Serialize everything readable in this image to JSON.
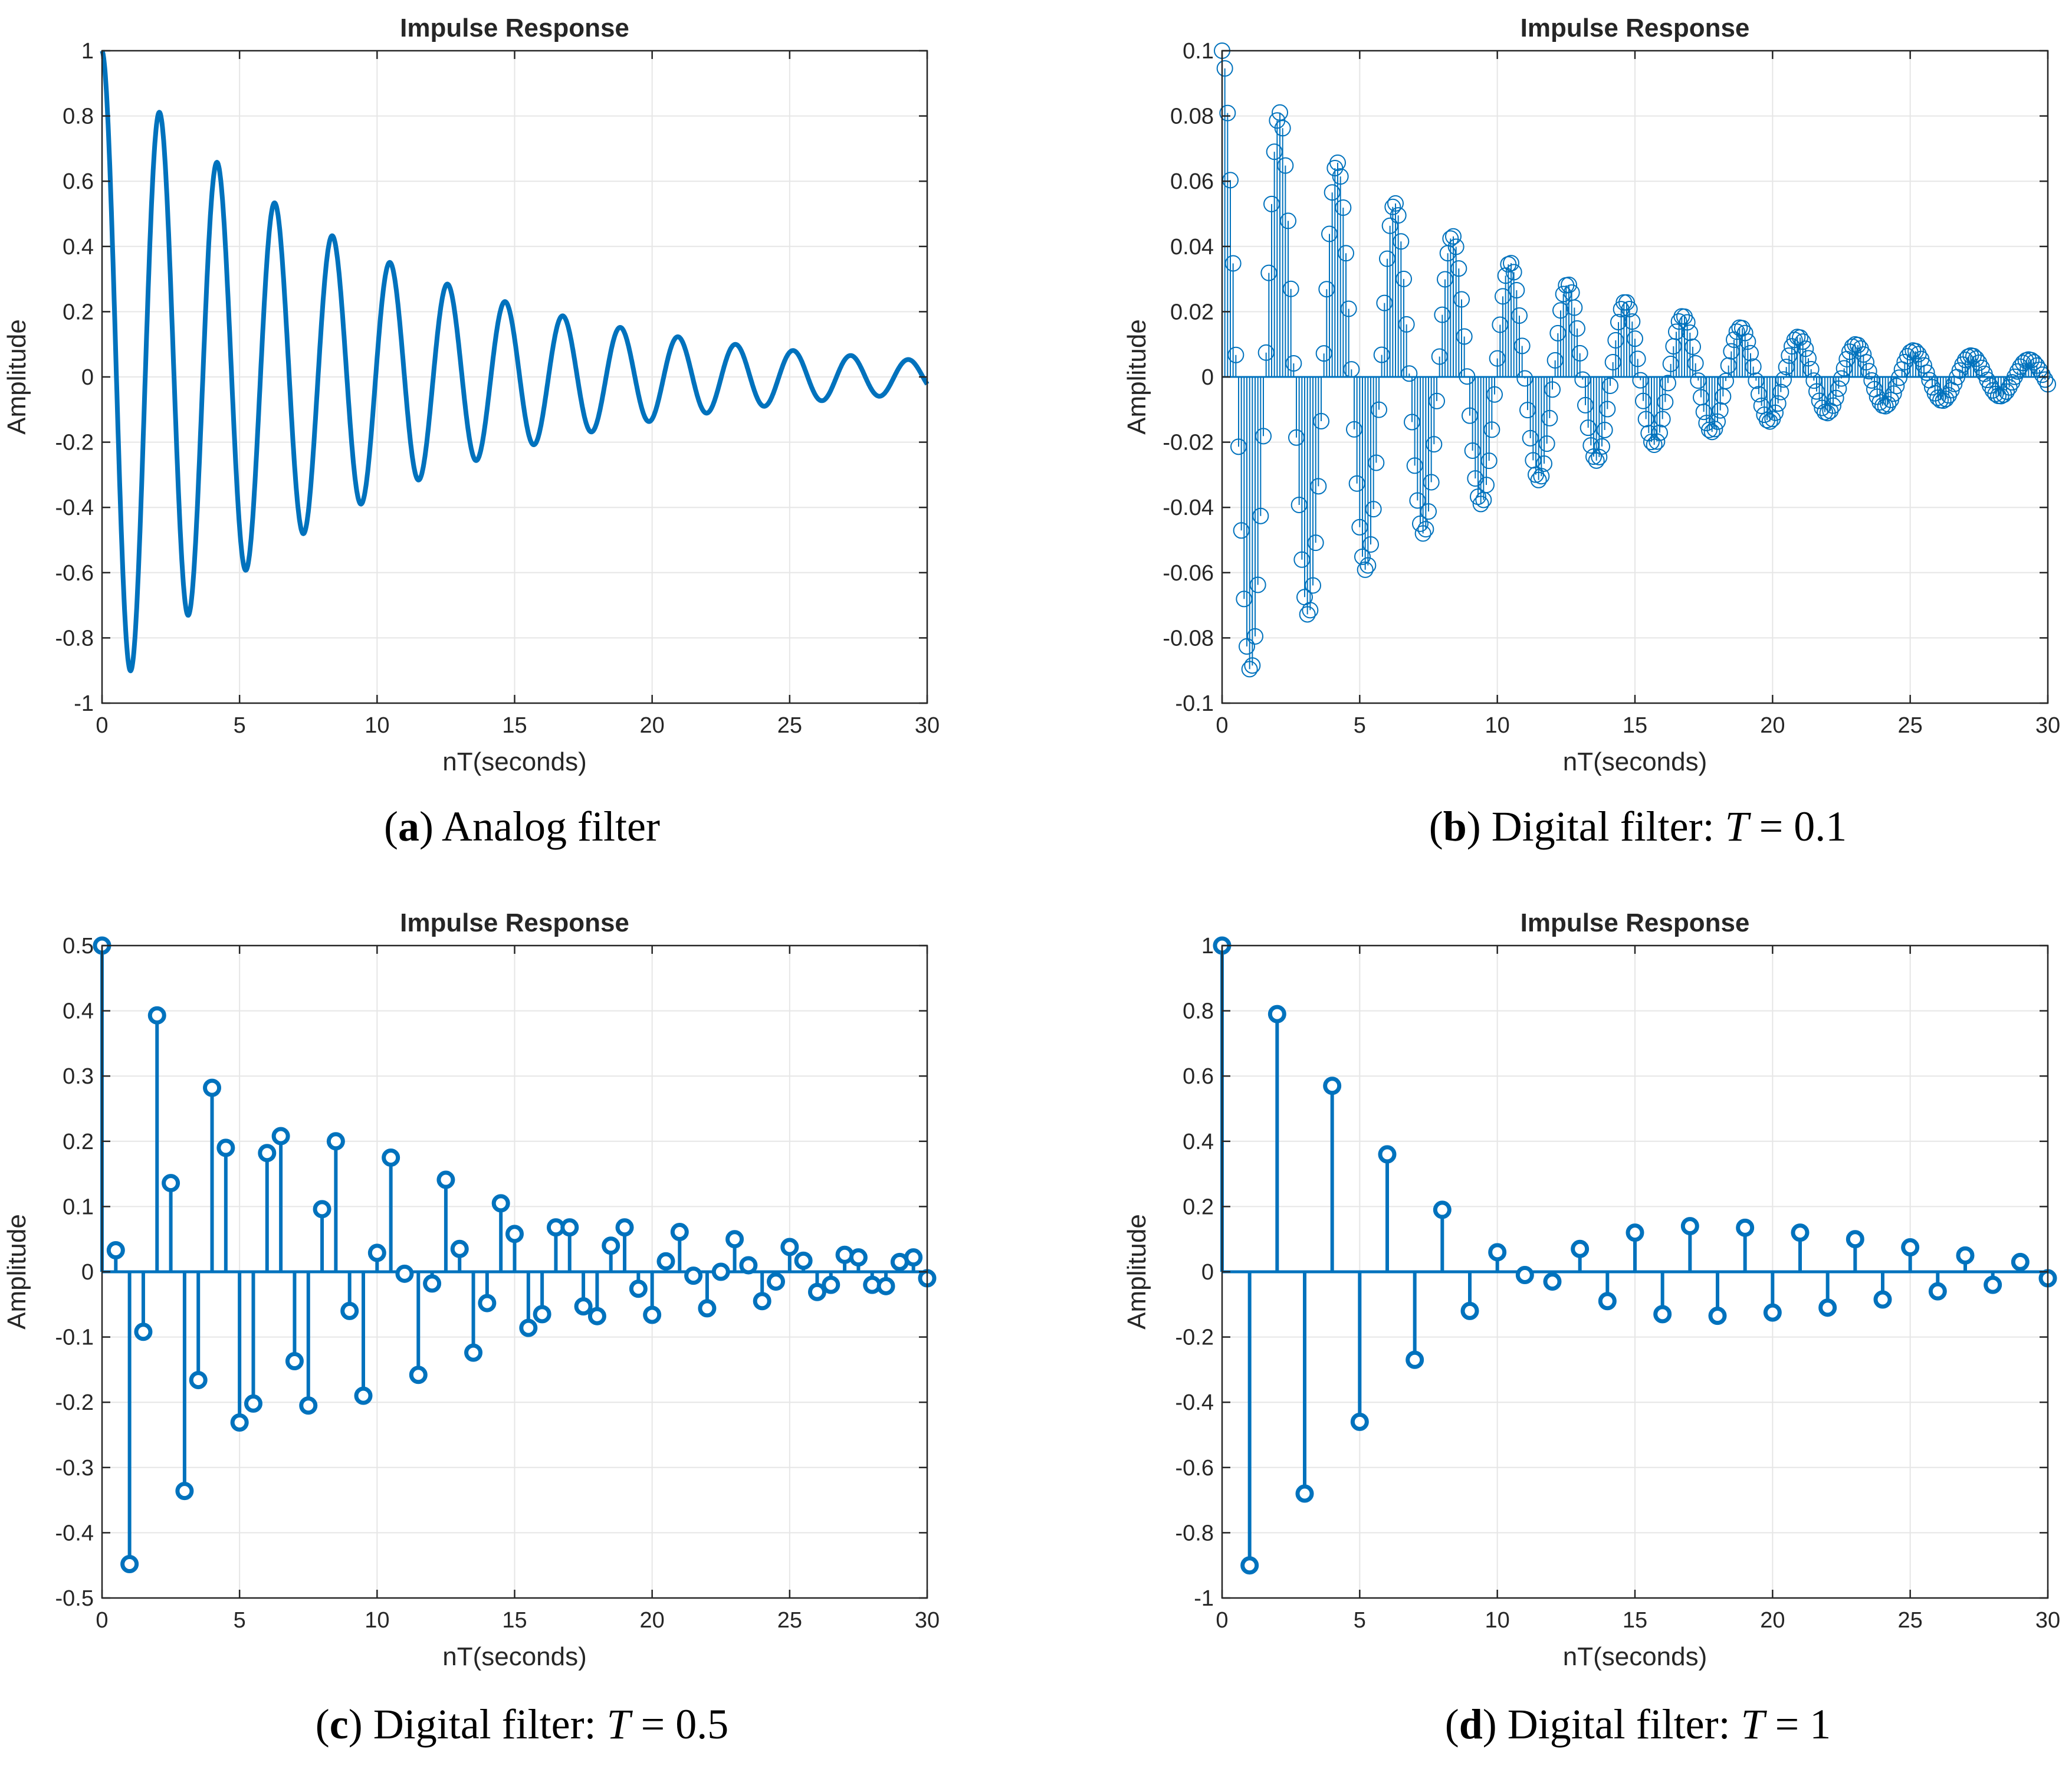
{
  "panels": [
    {
      "id": "a",
      "caption": {
        "letter": "a",
        "text": "Analog filter",
        "var": "",
        "value": ""
      },
      "chart_data": {
        "type": "line",
        "title": "Impulse Response",
        "xlabel": "nT(seconds)",
        "ylabel": "Amplitude",
        "xlim": [
          0,
          30
        ],
        "ylim": [
          -1,
          1
        ],
        "xticks": [
          0,
          5,
          10,
          15,
          20,
          25,
          30
        ],
        "yticks": [
          -1,
          -0.8,
          -0.6,
          -0.4,
          -0.2,
          0,
          0.2,
          0.4,
          0.6,
          0.8,
          1
        ],
        "ytick_labels": [
          "-1",
          "-0.8",
          "-0.6",
          "-0.4",
          "-0.2",
          "0",
          "0.2",
          "0.4",
          "0.6",
          "0.8",
          "1"
        ],
        "grid": true,
        "color": "#0072BD",
        "model": {
          "kind": "damped_cosine",
          "amplitude": 1,
          "decay": 0.1,
          "omega": 3,
          "x_start": 0,
          "x_end": 30,
          "step": 0.02
        }
      }
    },
    {
      "id": "b",
      "caption": {
        "letter": "b",
        "text": "Digital filter: ",
        "var": "T",
        "value": " = 0.1"
      },
      "chart_data": {
        "type": "stem",
        "title": "Impulse Response",
        "xlabel": "nT(seconds)",
        "ylabel": "Amplitude",
        "xlim": [
          0,
          30
        ],
        "ylim": [
          -0.1,
          0.1
        ],
        "xticks": [
          0,
          5,
          10,
          15,
          20,
          25,
          30
        ],
        "yticks": [
          -0.1,
          -0.08,
          -0.06,
          -0.04,
          -0.02,
          0,
          0.02,
          0.04,
          0.06,
          0.08,
          0.1
        ],
        "ytick_labels": [
          "-0.1",
          "-0.08",
          "-0.06",
          "-0.04",
          "-0.02",
          "0",
          "0.02",
          "0.04",
          "0.06",
          "0.08",
          "0.1"
        ],
        "grid": true,
        "color": "#0072BD",
        "marker": "open-circle",
        "model": {
          "kind": "damped_cosine",
          "amplitude": 0.1,
          "decay": 0.1,
          "omega": 3,
          "x_start": 0,
          "x_end": 30,
          "step": 0.1
        }
      }
    },
    {
      "id": "c",
      "caption": {
        "letter": "c",
        "text": "Digital filter: ",
        "var": "T",
        "value": " = 0.5"
      },
      "chart_data": {
        "type": "stem",
        "title": "Impulse Response",
        "xlabel": "nT(seconds)",
        "ylabel": "Amplitude",
        "xlim": [
          0,
          30
        ],
        "ylim": [
          -0.5,
          0.5
        ],
        "xticks": [
          0,
          5,
          10,
          15,
          20,
          25,
          30
        ],
        "yticks": [
          -0.5,
          -0.4,
          -0.3,
          -0.2,
          -0.1,
          0,
          0.1,
          0.2,
          0.3,
          0.4,
          0.5
        ],
        "ytick_labels": [
          "-0.5",
          "-0.4",
          "-0.3",
          "-0.2",
          "-0.1",
          "0",
          "0.1",
          "0.2",
          "0.3",
          "0.4",
          "0.5"
        ],
        "grid": true,
        "color": "#0072BD",
        "marker": "thick-circle",
        "x": [
          0,
          0.5,
          1,
          1.5,
          2,
          2.5,
          3,
          3.5,
          4,
          4.5,
          5,
          5.5,
          6,
          6.5,
          7,
          7.5,
          8,
          8.5,
          9,
          9.5,
          10,
          10.5,
          11,
          11.5,
          12,
          12.5,
          13,
          13.5,
          14,
          14.5,
          15,
          15.5,
          16,
          16.5,
          17,
          17.5,
          18,
          18.5,
          19,
          19.5,
          20,
          20.5,
          21,
          21.5,
          22,
          22.5,
          23,
          23.5,
          24,
          24.5,
          25,
          25.5,
          26,
          26.5,
          27,
          27.5,
          28,
          28.5,
          29,
          29.5,
          30
        ],
        "values": [
          0.5,
          0.033,
          -0.448,
          -0.092,
          0.393,
          0.136,
          -0.336,
          -0.166,
          0.282,
          0.19,
          -0.231,
          -0.202,
          0.182,
          0.208,
          -0.137,
          -0.205,
          0.096,
          0.2,
          -0.06,
          -0.19,
          0.029,
          0.175,
          -0.003,
          -0.158,
          -0.018,
          0.141,
          0.035,
          -0.124,
          -0.048,
          0.105,
          0.058,
          -0.086,
          -0.065,
          0.068,
          0.068,
          -0.053,
          -0.068,
          0.04,
          0.068,
          -0.026,
          -0.066,
          0.016,
          0.061,
          -0.006,
          -0.056,
          0.0,
          0.05,
          0.01,
          -0.045,
          -0.015,
          0.038,
          0.017,
          -0.031,
          -0.02,
          0.026,
          0.022,
          -0.02,
          -0.022,
          0.015,
          0.022,
          -0.01
        ]
      }
    },
    {
      "id": "d",
      "caption": {
        "letter": "d",
        "text": "Digital filter: ",
        "var": "T",
        "value": " = 1"
      },
      "chart_data": {
        "type": "stem",
        "title": "Impulse Response",
        "xlabel": "nT(seconds)",
        "ylabel": "Amplitude",
        "xlim": [
          0,
          30
        ],
        "ylim": [
          -1,
          1
        ],
        "xticks": [
          0,
          5,
          10,
          15,
          20,
          25,
          30
        ],
        "yticks": [
          -1,
          -0.8,
          -0.6,
          -0.4,
          -0.2,
          0,
          0.2,
          0.4,
          0.6,
          0.8,
          1
        ],
        "ytick_labels": [
          "-1",
          "-0.8",
          "-0.6",
          "-0.4",
          "-0.2",
          "0",
          "0.2",
          "0.4",
          "0.6",
          "0.8",
          "1"
        ],
        "grid": true,
        "color": "#0072BD",
        "marker": "thick-circle",
        "x": [
          0,
          1,
          2,
          3,
          4,
          5,
          6,
          7,
          8,
          9,
          10,
          11,
          12,
          13,
          14,
          15,
          16,
          17,
          18,
          19,
          20,
          21,
          22,
          23,
          24,
          25,
          26,
          27,
          28,
          29,
          30
        ],
        "values": [
          1,
          -0.9,
          0.79,
          -0.68,
          0.57,
          -0.46,
          0.36,
          -0.27,
          0.19,
          -0.12,
          0.06,
          -0.01,
          -0.03,
          0.07,
          -0.09,
          0.12,
          -0.13,
          0.14,
          -0.135,
          0.135,
          -0.125,
          0.12,
          -0.11,
          0.1,
          -0.085,
          0.075,
          -0.06,
          0.05,
          -0.04,
          0.03,
          -0.02
        ]
      }
    }
  ]
}
